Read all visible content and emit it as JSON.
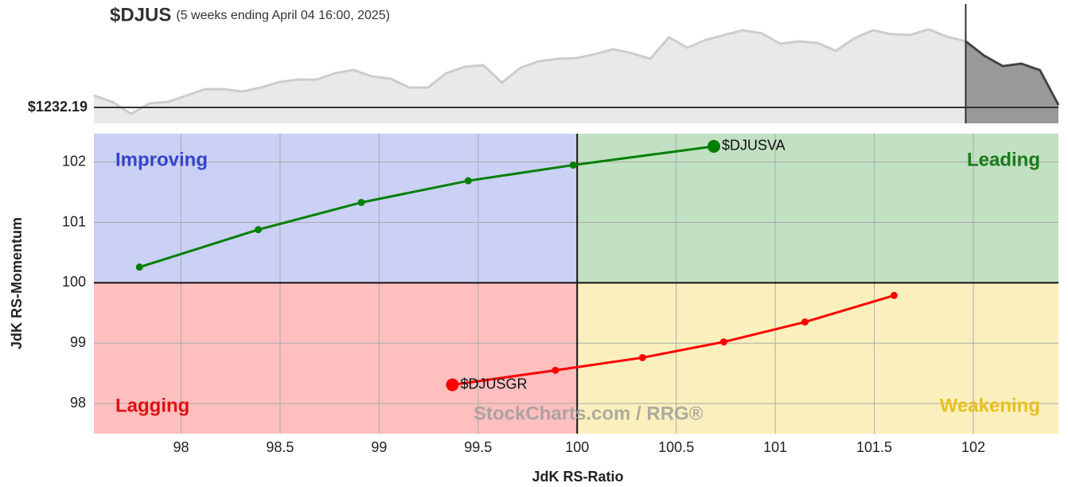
{
  "chart_data": [
    {
      "type": "area",
      "title": "$DJUS",
      "subtitle": "(5 weeks ending April 04 16:00, 2025)",
      "values": [
        1237.6,
        1234.7,
        1229.3,
        1234.0,
        1234.7,
        1237.6,
        1240.5,
        1240.5,
        1239.4,
        1241.2,
        1243.7,
        1244.8,
        1244.8,
        1247.7,
        1249.1,
        1246.2,
        1245.2,
        1241.2,
        1241.2,
        1247.7,
        1250.6,
        1251.3,
        1243.4,
        1250.2,
        1253.1,
        1254.2,
        1254.5,
        1256.3,
        1258.5,
        1256.7,
        1254.2,
        1263.9,
        1259.2,
        1262.8,
        1265.0,
        1267.1,
        1265.7,
        1261.0,
        1262.1,
        1261.4,
        1257.8,
        1263.5,
        1267.1,
        1265.3,
        1265.0,
        1267.5,
        1264.2,
        1262.1,
        1255.6,
        1250.9,
        1252.0,
        1249.1,
        1233.3
      ],
      "color": "#cccccc",
      "tail_color": "#444444",
      "tail_start_index": 47,
      "ylim": [
        1225,
        1279
      ],
      "yticks": [
        {
          "value": 1232.19,
          "label": "$1232.19"
        }
      ]
    },
    {
      "type": "rrg",
      "xlabel": "JdK RS-Ratio",
      "ylabel": "JdK RS-Momentum",
      "xlim": [
        97.56,
        102.43
      ],
      "ylim": [
        97.5,
        102.47
      ],
      "xticks": [
        98,
        98.5,
        99,
        99.5,
        100,
        100.5,
        101,
        101.5,
        102
      ],
      "yticks": [
        98,
        99,
        100,
        101,
        102
      ],
      "grid": true,
      "center": {
        "x": 100,
        "y": 100
      },
      "quadrants": [
        {
          "name": "Improving",
          "fill": "#cbd0f5",
          "color": "#3344cc"
        },
        {
          "name": "Leading",
          "fill": "#c2e0c2",
          "color": "#1a7a1a"
        },
        {
          "name": "Lagging",
          "fill": "#ffbfbf",
          "color": "#e01010"
        },
        {
          "name": "Weakening",
          "fill": "#fbf0bd",
          "color": "#e8c020"
        }
      ],
      "watermark": "StockCharts.com / RRG®",
      "series": [
        {
          "name": "$DJUSVA",
          "color": "#008000",
          "x": [
            97.79,
            98.39,
            98.91,
            99.45,
            99.98,
            100.69
          ],
          "values": [
            100.26,
            100.88,
            101.33,
            101.69,
            101.95,
            102.26
          ]
        },
        {
          "name": "$DJUSGR",
          "color": "#ff0000",
          "x": [
            101.6,
            101.15,
            100.74,
            100.33,
            99.89,
            99.37
          ],
          "values": [
            99.79,
            99.35,
            99.02,
            98.76,
            98.55,
            98.31
          ]
        }
      ]
    }
  ]
}
